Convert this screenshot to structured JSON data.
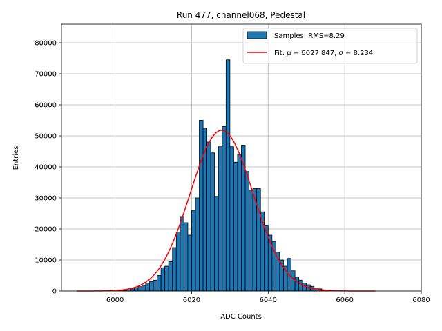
{
  "chart_data": {
    "type": "bar",
    "title": "Run 477, channel068, Pedestal",
    "xlabel": "ADC Counts",
    "ylabel": "Entries",
    "xlim": [
      5986,
      6080
    ],
    "ylim": [
      0,
      86000
    ],
    "xticks": [
      6000,
      6020,
      6040,
      6060,
      6080
    ],
    "yticks": [
      0,
      10000,
      20000,
      30000,
      40000,
      50000,
      60000,
      70000,
      80000
    ],
    "grid": true,
    "legend_position": "top-right",
    "histogram": {
      "name": "Samples: RMS=8.29",
      "color": "#1f77b4",
      "bin_width": 1,
      "bin_starts": [
        6001,
        6002,
        6003,
        6004,
        6005,
        6006,
        6007,
        6008,
        6009,
        6010,
        6011,
        6012,
        6013,
        6014,
        6015,
        6016,
        6017,
        6018,
        6019,
        6020,
        6021,
        6022,
        6023,
        6024,
        6025,
        6026,
        6027,
        6028,
        6029,
        6030,
        6031,
        6032,
        6033,
        6034,
        6035,
        6036,
        6037,
        6038,
        6039,
        6040,
        6041,
        6042,
        6043,
        6044,
        6045,
        6046,
        6047,
        6048,
        6049,
        6050,
        6051,
        6052,
        6053,
        6054,
        6055
      ],
      "counts": [
        100,
        200,
        400,
        700,
        1000,
        1400,
        1800,
        2500,
        3000,
        3500,
        5000,
        7500,
        8000,
        9500,
        14000,
        19000,
        24000,
        22000,
        18000,
        26000,
        30000,
        55000,
        52500,
        48000,
        44500,
        30500,
        46500,
        53000,
        74500,
        46500,
        41500,
        44000,
        47000,
        38500,
        32500,
        33000,
        33000,
        25500,
        21000,
        18000,
        16000,
        12500,
        10000,
        8000,
        10500,
        6500,
        4500,
        3500,
        2500,
        2000,
        1500,
        1000,
        700,
        400,
        200
      ]
    },
    "fit": {
      "name_prefix": "Fit: ",
      "mu_symbol": "μ",
      "sigma_symbol": "σ",
      "mu": 6027.847,
      "sigma": 8.234,
      "amplitude": 51800,
      "x_range": [
        5990,
        6068
      ],
      "color": "#ff0000"
    }
  }
}
